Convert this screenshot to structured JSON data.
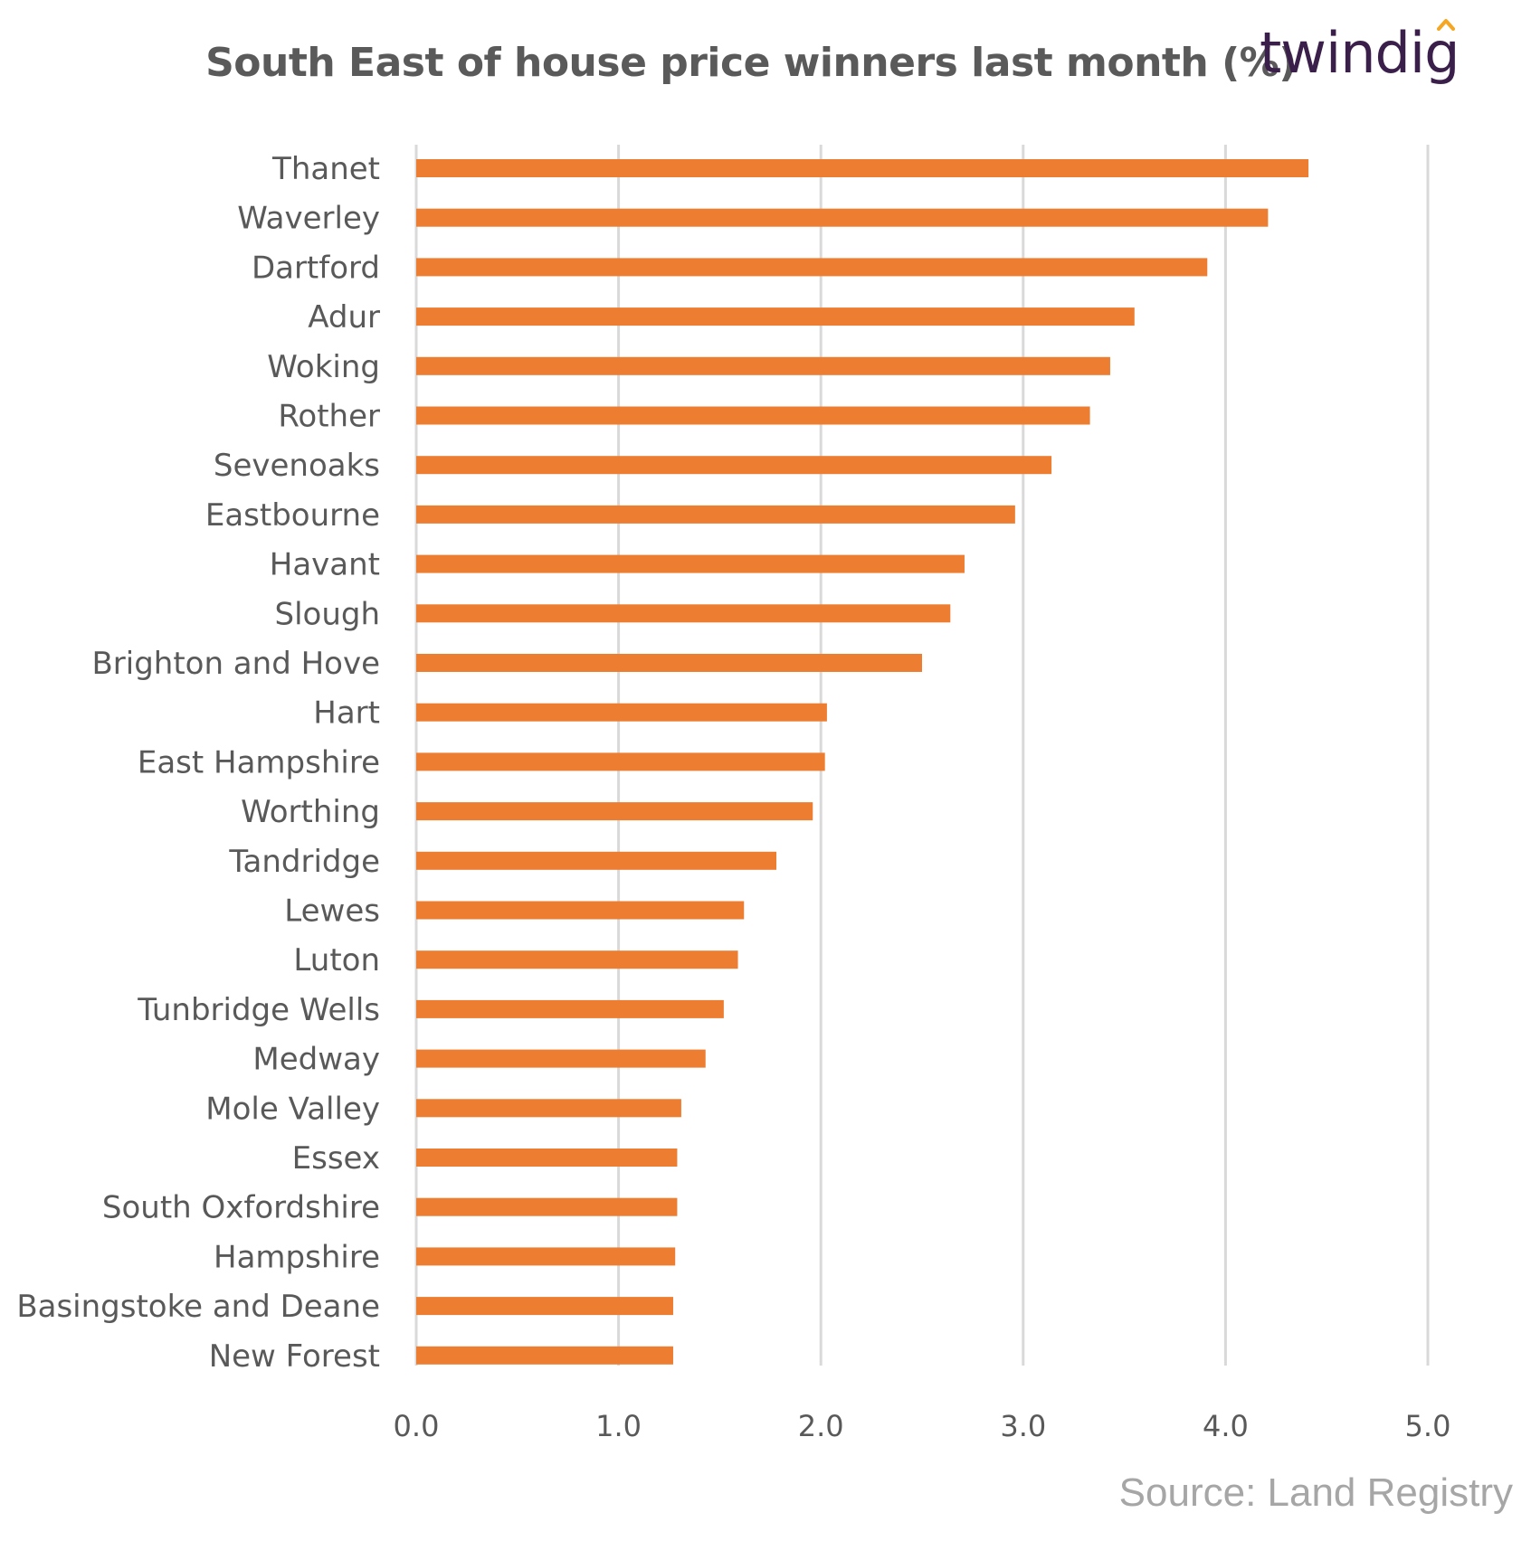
{
  "chart_data": {
    "type": "bar",
    "orientation": "horizontal",
    "title": "South East of house price winners last month (%)",
    "categories": [
      "Thanet",
      "Waverley",
      "Dartford",
      "Adur",
      "Woking",
      "Rother",
      "Sevenoaks",
      "Eastbourne",
      "Havant",
      "Slough",
      "Brighton and Hove",
      "Hart",
      "East Hampshire",
      "Worthing",
      "Tandridge",
      "Lewes",
      "Luton",
      "Tunbridge Wells",
      "Medway",
      "Mole Valley",
      "Essex",
      "South Oxfordshire",
      "Hampshire",
      "Basingstoke and Deane",
      "New Forest"
    ],
    "values": [
      4.41,
      4.21,
      3.91,
      3.55,
      3.43,
      3.33,
      3.14,
      2.96,
      2.71,
      2.64,
      2.5,
      2.03,
      2.02,
      1.96,
      1.78,
      1.62,
      1.59,
      1.52,
      1.43,
      1.31,
      1.29,
      1.29,
      1.28,
      1.27,
      1.27
    ],
    "xlim": [
      0,
      5
    ],
    "xticks": [
      "0.0",
      "1.0",
      "2.0",
      "3.0",
      "4.0",
      "5.0"
    ],
    "xlabel": "",
    "ylabel": "",
    "grid": true,
    "bar_color": "#ED7D31"
  },
  "branding": {
    "logo_text": "twindig",
    "logo_color": "#3a1f4a",
    "logo_accent_color": "#f5a623"
  },
  "source": "Source: Land Registry"
}
